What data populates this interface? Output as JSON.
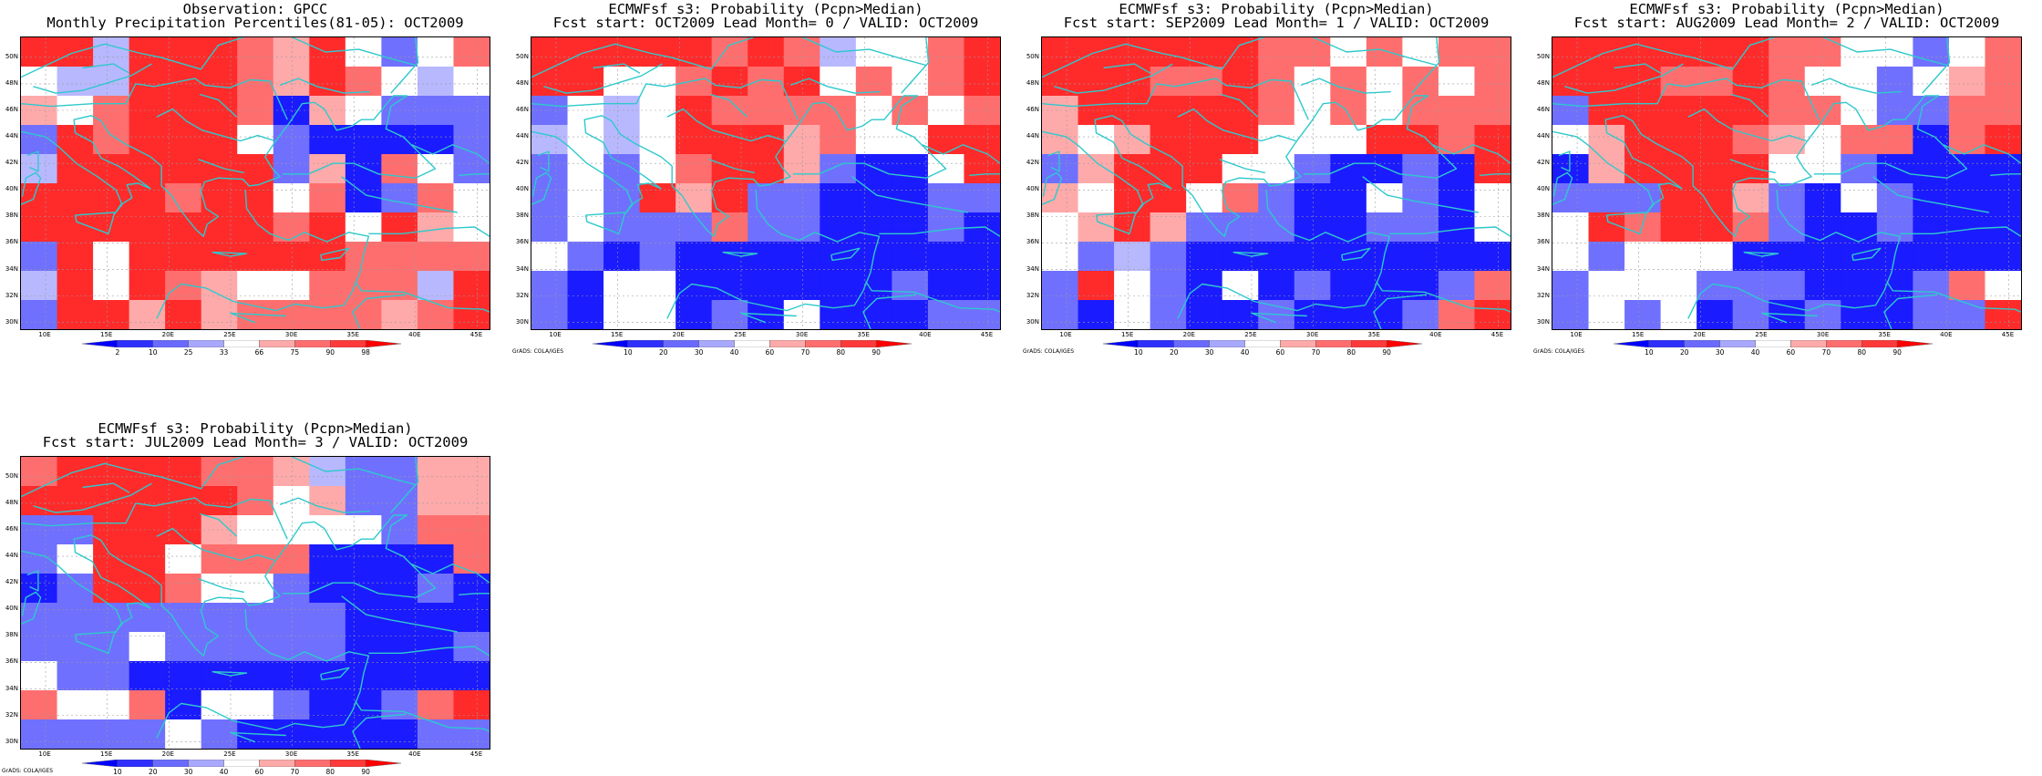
{
  "panels": [
    {
      "title1": "Observation: GPCC",
      "title2": "Monthly Precipitation Percentiles(81-05): OCT2009",
      "colorbar": [
        "2",
        "10",
        "25",
        "33",
        "66",
        "75",
        "90",
        "98"
      ],
      "credit": "",
      "grid": [
        "RRPRRRrpRWbWr",
        "WPPRRRrpRrWPW",
        "pWrRRRrBpWbbb",
        "bRrRRRWbBBBBb",
        "PRRRRRRbpBrWb",
        "RRRRrRRWrBbrW",
        "RRRRRRRrRWRpW",
        "bRWRRRRRRrrrr",
        "PRWRrpWWrrrPR",
        "bRRpRprrrrprR"
      ]
    },
    {
      "title1": "ECMWFsf s3: Probability (Pcpn>Median)",
      "title2": "Fcst start: OCT2009  Lead Month= 0 / VALID: OCT2009",
      "colorbar": [
        "10",
        "20",
        "30",
        "40",
        "60",
        "70",
        "80",
        "90"
      ],
      "credit": "GrADS: COLA/IGES",
      "grid": [
        "RRRRRrRrPWWrR",
        "RRWWrRrRWrWrR",
        "bWPWRrrrrWrWr",
        "PWPWRRRprWWRR",
        "bWbWrRRpbBBWR",
        "bWbRpRbbBBBbb",
        "bWbbbrbbBBBbB",
        "WbBbBBBBBBBBB",
        "bBWWBBBBBBbBB",
        "bBWWBbBWBBBbb"
      ]
    },
    {
      "title1": "ECMWFsf s3: Probability (Pcpn>Median)",
      "title2": "Fcst start: SEP2009  Lead Month= 1 / VALID: OCT2009",
      "colorbar": [
        "10",
        "20",
        "30",
        "40",
        "60",
        "70",
        "80",
        "90"
      ],
      "credit": "GrADS: COLA/IGES",
      "grid": [
        "RRRRRRrrWrWrr",
        "RRRrrRrWrWrWr",
        "pRRRRRrWrWrrr",
        "pWpRRRWWWRRrR",
        "bpRRRWWbBBbBR",
        "pWRRWrbBBWbBW",
        "WpRpbbbBBbbBW",
        "WbPbBBBBBBBBB",
        "bRWbBWBbBBBbr",
        "bBWbBBbBBBbrR"
      ]
    },
    {
      "title1": "ECMWFsf s3: Probability (Pcpn>Median)",
      "title2": "Fcst start: AUG2009  Lead Month= 2 / VALID: OCT2009",
      "colorbar": [
        "10",
        "20",
        "30",
        "40",
        "60",
        "70",
        "80",
        "90"
      ],
      "credit": "GrADS: COLA/IGES",
      "grid": [
        "RRRRRRrrWWbWr",
        "RRRrrRrWWbWpr",
        "bRRRRRrrWbbrr",
        "WpRRRrpWrrBrR",
        "BpRRRRWWbBBBB",
        "bbbRRpbBWbBBB",
        "WRrRRrbBBbBBB",
        "WbWWWBBBBBBBB",
        "bWWWbbbBBBbrW",
        "bWbWBbBbBBbbR"
      ]
    },
    {
      "title1": "ECMWFsf s3: Probability (Pcpn>Median)",
      "title2": "Fcst start: JUL2009  Lead Month= 3 / VALID: OCT2009",
      "colorbar": [
        "10",
        "20",
        "30",
        "40",
        "60",
        "70",
        "80",
        "90"
      ],
      "credit": "GrADS: COLA/IGES",
      "grid": [
        "rRRRRrrpPbbpp",
        "RRRRRRrWpbbpp",
        "bbRRRpWWWWbrr",
        "bWRRWrrrBBBBr",
        "BbRRrWWbBBBbB",
        "bbbbbbbbbBBBB",
        "bbbWbbbbbBBBb",
        "WbbBBBBBBBBBB",
        "rWWrBWWbBBbrR",
        "bbbbWbBBBBBbb"
      ]
    }
  ],
  "lat_labels": [
    "50N",
    "48N",
    "46N",
    "44N",
    "42N",
    "40N",
    "38N",
    "36N",
    "34N",
    "32N",
    "30N"
  ],
  "lon_labels": [
    "10E",
    "15E",
    "20E",
    "25E",
    "30E",
    "35E",
    "40E",
    "45E"
  ],
  "colors": {
    "R": "#ff2b2b",
    "r": "#ff6e6e",
    "p": "#ffaaaa",
    "W": "#ffffff",
    "P": "#b8b8ff",
    "b": "#7070ff",
    "B": "#1b1bff",
    "coast": "#2ec9cc",
    "colorbar_steps": [
      "#0000ff",
      "#2e2eff",
      "#6a6aff",
      "#a8a8ff",
      "#ffffff",
      "#ffaaaa",
      "#ff6e6e",
      "#ff3a3a",
      "#ff0000"
    ]
  }
}
